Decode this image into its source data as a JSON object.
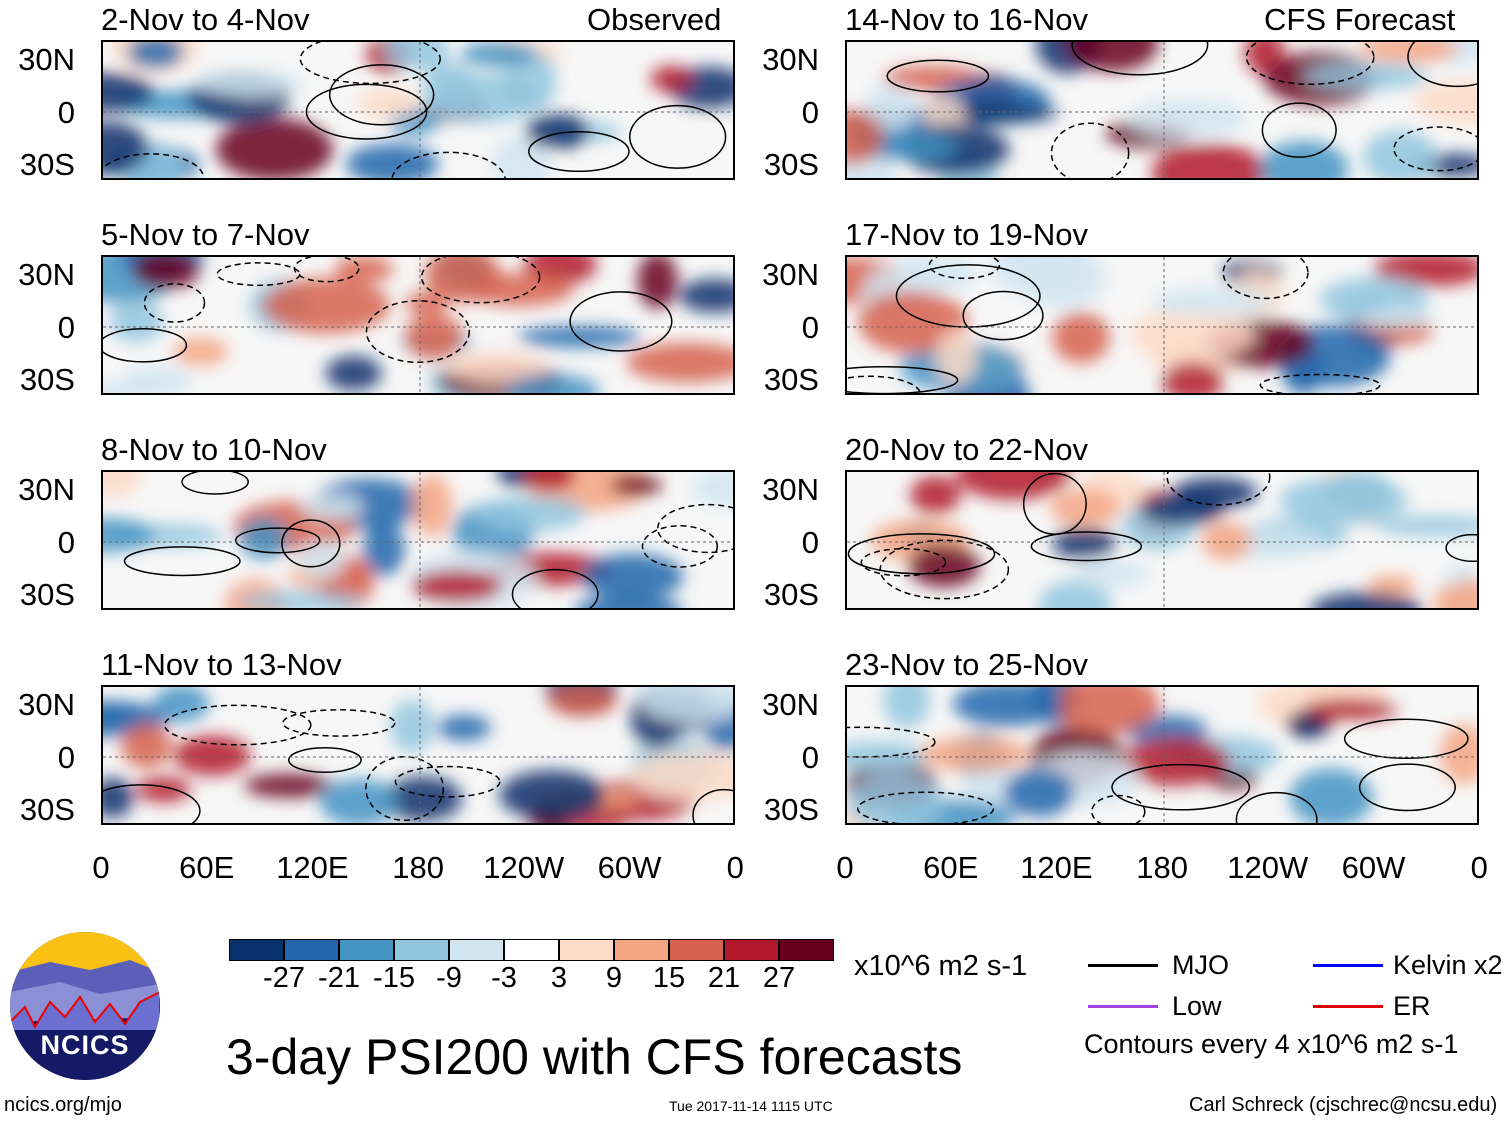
{
  "title": "3-day PSI200 with CFS forecasts",
  "observed_label": "Observed",
  "forecast_label": "CFS Forecast",
  "observed_panels": [
    "2-Nov to 4-Nov",
    "5-Nov to 7-Nov",
    "8-Nov to 10-Nov",
    "11-Nov to 13-Nov"
  ],
  "forecast_panels": [
    "14-Nov to 16-Nov",
    "17-Nov to 19-Nov",
    "20-Nov to 22-Nov",
    "23-Nov to 25-Nov"
  ],
  "lat_labels": [
    "30N",
    "0",
    "30S"
  ],
  "lon_labels": [
    "0",
    "60E",
    "120E",
    "180",
    "120W",
    "60W",
    "0"
  ],
  "colorbar": {
    "colors": [
      "#08306b",
      "#2166ac",
      "#4393c3",
      "#92c5de",
      "#d1e5f0",
      "#ffffff",
      "#fddbc7",
      "#f4a582",
      "#d6604d",
      "#b2182b",
      "#67001f"
    ],
    "labels": [
      "-27",
      "-21",
      "-15",
      "-9",
      "-3",
      "3",
      "9",
      "15",
      "21",
      "27"
    ],
    "units": "x10^6 m2 s-1"
  },
  "legend": [
    {
      "label": "MJO",
      "color": "#000000"
    },
    {
      "label": "Kelvin x2",
      "color": "#0000ff"
    },
    {
      "label": "Low",
      "color": "#a040e0"
    },
    {
      "label": "ER",
      "color": "#e00000"
    }
  ],
  "contour_note": "Contours every 4 x10^6 m2 s-1",
  "logo_text": "NCICS",
  "footer": {
    "url": "ncics.org/mjo",
    "timestamp": "Tue 2017-11-14 1115 UTC",
    "author": "Carl Schreck (cjschrec@ncsu.edu)"
  }
}
